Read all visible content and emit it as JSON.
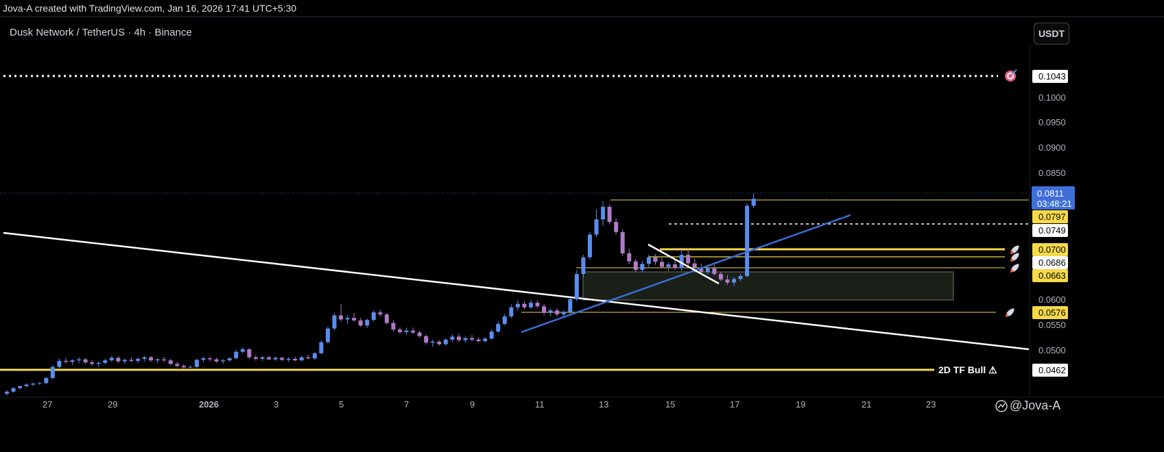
{
  "header": {
    "attribution": "Jova-A created with TradingView.com, Jan 16, 2026 17:41 UTC+5:30",
    "symbol": "Dusk Network / TetherUS · 4h · Binance",
    "currency_button": "USDT",
    "watermark": "@Jova-A"
  },
  "chart_data": {
    "type": "candlestick",
    "title": "Dusk Network / TetherUS · 4h · Binance",
    "ylabel": "USDT",
    "ylim": [
      0.0418,
      0.1115
    ],
    "y_ticks": [
      "0.1000",
      "0.0950",
      "0.0900",
      "0.0850",
      "0.0600",
      "0.0550",
      "0.0500"
    ],
    "x_ticks": [
      "27",
      "29",
      "2026",
      "3",
      "5",
      "7",
      "9",
      "11",
      "13",
      "15",
      "17",
      "19",
      "21",
      "23"
    ],
    "grid": false,
    "colors": {
      "up": "#5b8def",
      "down": "#b07ac8",
      "level": "#f5d94a",
      "trend_white": "#ffffff",
      "trend_blue": "#3a6fd8"
    },
    "current_price": {
      "value": "0.0811",
      "countdown": "03:48:21"
    },
    "price_labels": [
      {
        "value": "0.1043",
        "style": "white"
      },
      {
        "value": "0.0797",
        "style": "yellow"
      },
      {
        "value": "0.0749",
        "style": "white"
      },
      {
        "value": "0.0700",
        "style": "yellow"
      },
      {
        "value": "0.0686",
        "style": "white"
      },
      {
        "value": "0.0663",
        "style": "yellow"
      },
      {
        "value": "0.0576",
        "style": "yellow"
      },
      {
        "value": "0.0462",
        "style": "white"
      }
    ],
    "annotations": [
      {
        "text": "2D TF Bull ⚠",
        "value": "0.0462"
      }
    ],
    "candles_ohlc": [
      [
        0.0425,
        0.0432,
        0.0421,
        0.0429
      ],
      [
        0.0429,
        0.0438,
        0.0427,
        0.0436
      ],
      [
        0.0436,
        0.0441,
        0.0433,
        0.044
      ],
      [
        0.044,
        0.0445,
        0.0437,
        0.0443
      ],
      [
        0.0443,
        0.0447,
        0.044,
        0.0445
      ],
      [
        0.0445,
        0.0448,
        0.0442,
        0.0446
      ],
      [
        0.0446,
        0.0458,
        0.0444,
        0.0456
      ],
      [
        0.0456,
        0.0482,
        0.0453,
        0.0478
      ],
      [
        0.0478,
        0.0495,
        0.0475,
        0.049
      ],
      [
        0.049,
        0.0496,
        0.0484,
        0.0488
      ],
      [
        0.0488,
        0.0493,
        0.0482,
        0.0491
      ],
      [
        0.0491,
        0.0497,
        0.0485,
        0.0493
      ],
      [
        0.0493,
        0.0496,
        0.0484,
        0.0487
      ],
      [
        0.0487,
        0.0491,
        0.048,
        0.0484
      ],
      [
        0.0484,
        0.0489,
        0.0478,
        0.0486
      ],
      [
        0.0486,
        0.0494,
        0.0483,
        0.0491
      ],
      [
        0.0491,
        0.05,
        0.0488,
        0.0496
      ],
      [
        0.0496,
        0.0499,
        0.0486,
        0.0489
      ],
      [
        0.0489,
        0.0494,
        0.0484,
        0.0492
      ],
      [
        0.0492,
        0.0497,
        0.0487,
        0.049
      ],
      [
        0.049,
        0.0497,
        0.0486,
        0.0494
      ],
      [
        0.0494,
        0.05,
        0.0489,
        0.0497
      ],
      [
        0.0497,
        0.05,
        0.0488,
        0.0491
      ],
      [
        0.0491,
        0.0495,
        0.0486,
        0.0493
      ],
      [
        0.0493,
        0.0498,
        0.0488,
        0.0491
      ],
      [
        0.0491,
        0.0494,
        0.0482,
        0.0484
      ],
      [
        0.0484,
        0.0488,
        0.0477,
        0.048
      ],
      [
        0.048,
        0.0483,
        0.0473,
        0.0477
      ],
      [
        0.0477,
        0.0481,
        0.0473,
        0.0478
      ],
      [
        0.0478,
        0.0494,
        0.0476,
        0.0492
      ],
      [
        0.0492,
        0.0498,
        0.0488,
        0.0495
      ],
      [
        0.0495,
        0.0499,
        0.0489,
        0.0493
      ],
      [
        0.0493,
        0.0496,
        0.0486,
        0.0489
      ],
      [
        0.0489,
        0.0494,
        0.0484,
        0.0491
      ],
      [
        0.0491,
        0.0497,
        0.0488,
        0.0495
      ],
      [
        0.0495,
        0.0512,
        0.0493,
        0.0508
      ],
      [
        0.0508,
        0.0517,
        0.0505,
        0.0513
      ],
      [
        0.0513,
        0.0515,
        0.0494,
        0.0497
      ],
      [
        0.0497,
        0.0502,
        0.049,
        0.0494
      ],
      [
        0.0494,
        0.05,
        0.049,
        0.0497
      ],
      [
        0.0497,
        0.05,
        0.0491,
        0.0493
      ],
      [
        0.0493,
        0.0499,
        0.049,
        0.0496
      ],
      [
        0.0496,
        0.0498,
        0.049,
        0.0492
      ],
      [
        0.0492,
        0.0497,
        0.0488,
        0.0494
      ],
      [
        0.0494,
        0.0498,
        0.0489,
        0.0491
      ],
      [
        0.0491,
        0.05,
        0.0489,
        0.0497
      ],
      [
        0.0497,
        0.0502,
        0.0493,
        0.0495
      ],
      [
        0.0495,
        0.0508,
        0.0492,
        0.0505
      ],
      [
        0.0505,
        0.053,
        0.0503,
        0.0527
      ],
      [
        0.0527,
        0.0558,
        0.0524,
        0.0554
      ],
      [
        0.0554,
        0.0585,
        0.0551,
        0.058
      ],
      [
        0.058,
        0.0603,
        0.0568,
        0.0572
      ],
      [
        0.0572,
        0.058,
        0.0563,
        0.0575
      ],
      [
        0.0575,
        0.0585,
        0.0568,
        0.057
      ],
      [
        0.057,
        0.0575,
        0.0557,
        0.056
      ],
      [
        0.056,
        0.0574,
        0.0555,
        0.0571
      ],
      [
        0.0571,
        0.059,
        0.0568,
        0.0586
      ],
      [
        0.0586,
        0.0591,
        0.0578,
        0.0582
      ],
      [
        0.0582,
        0.0585,
        0.0562,
        0.0565
      ],
      [
        0.0565,
        0.057,
        0.0548,
        0.0552
      ],
      [
        0.0552,
        0.0556,
        0.0543,
        0.0547
      ],
      [
        0.0547,
        0.0556,
        0.0541,
        0.055
      ],
      [
        0.055,
        0.0556,
        0.0543,
        0.0546
      ],
      [
        0.0546,
        0.055,
        0.0536,
        0.0539
      ],
      [
        0.0539,
        0.0542,
        0.0522,
        0.0526
      ],
      [
        0.0526,
        0.0532,
        0.0518,
        0.0528
      ],
      [
        0.0528,
        0.0531,
        0.052,
        0.0523
      ],
      [
        0.0523,
        0.0535,
        0.052,
        0.0532
      ],
      [
        0.0532,
        0.0543,
        0.0527,
        0.0538
      ],
      [
        0.0538,
        0.0544,
        0.0528,
        0.0531
      ],
      [
        0.0531,
        0.0538,
        0.0526,
        0.0535
      ],
      [
        0.0535,
        0.0541,
        0.0529,
        0.0532
      ],
      [
        0.0532,
        0.0537,
        0.0527,
        0.0529
      ],
      [
        0.0529,
        0.0537,
        0.0526,
        0.0534
      ],
      [
        0.0534,
        0.0552,
        0.0532,
        0.0548
      ],
      [
        0.0548,
        0.0568,
        0.0545,
        0.0563
      ],
      [
        0.0563,
        0.0583,
        0.056,
        0.0578
      ],
      [
        0.0578,
        0.0602,
        0.0574,
        0.0596
      ],
      [
        0.0596,
        0.061,
        0.059,
        0.0603
      ],
      [
        0.0603,
        0.0608,
        0.0592,
        0.0596
      ],
      [
        0.0596,
        0.061,
        0.0593,
        0.0605
      ],
      [
        0.0605,
        0.061,
        0.0594,
        0.0598
      ],
      [
        0.0598,
        0.0602,
        0.058,
        0.0585
      ],
      [
        0.0585,
        0.0593,
        0.0578,
        0.059
      ],
      [
        0.059,
        0.0594,
        0.0578,
        0.0582
      ],
      [
        0.0582,
        0.059,
        0.0577,
        0.0587
      ],
      [
        0.0587,
        0.0615,
        0.0584,
        0.0612
      ],
      [
        0.0612,
        0.067,
        0.0608,
        0.0662
      ],
      [
        0.0662,
        0.07,
        0.0655,
        0.0695
      ],
      [
        0.0695,
        0.0745,
        0.069,
        0.074
      ],
      [
        0.074,
        0.079,
        0.0735,
        0.077
      ],
      [
        0.077,
        0.0806,
        0.0757,
        0.0795
      ],
      [
        0.0795,
        0.08,
        0.076,
        0.0765
      ],
      [
        0.0765,
        0.0772,
        0.074,
        0.0745
      ],
      [
        0.0745,
        0.075,
        0.0697,
        0.0703
      ],
      [
        0.0703,
        0.0712,
        0.0681,
        0.0687
      ],
      [
        0.0687,
        0.0692,
        0.0665,
        0.067
      ],
      [
        0.067,
        0.0688,
        0.0665,
        0.0682
      ],
      [
        0.0682,
        0.07,
        0.0676,
        0.0695
      ],
      [
        0.0695,
        0.0702,
        0.068,
        0.0686
      ],
      [
        0.0686,
        0.0694,
        0.0672,
        0.0676
      ],
      [
        0.0676,
        0.0685,
        0.0668,
        0.0681
      ],
      [
        0.0681,
        0.0688,
        0.067,
        0.0674
      ],
      [
        0.0674,
        0.071,
        0.0668,
        0.07
      ],
      [
        0.07,
        0.0712,
        0.0677,
        0.0683
      ],
      [
        0.0683,
        0.0692,
        0.0668,
        0.0675
      ],
      [
        0.0675,
        0.0682,
        0.0662,
        0.0666
      ],
      [
        0.0666,
        0.0678,
        0.0661,
        0.0673
      ],
      [
        0.0673,
        0.068,
        0.0659,
        0.0662
      ],
      [
        0.0662,
        0.0667,
        0.0648,
        0.0651
      ],
      [
        0.0651,
        0.066,
        0.064,
        0.0645
      ],
      [
        0.0645,
        0.0656,
        0.0638,
        0.0652
      ],
      [
        0.0652,
        0.0662,
        0.0648,
        0.0658
      ],
      [
        0.0658,
        0.0802,
        0.0655,
        0.0797
      ],
      [
        0.0797,
        0.0822,
        0.0792,
        0.0811
      ]
    ]
  }
}
